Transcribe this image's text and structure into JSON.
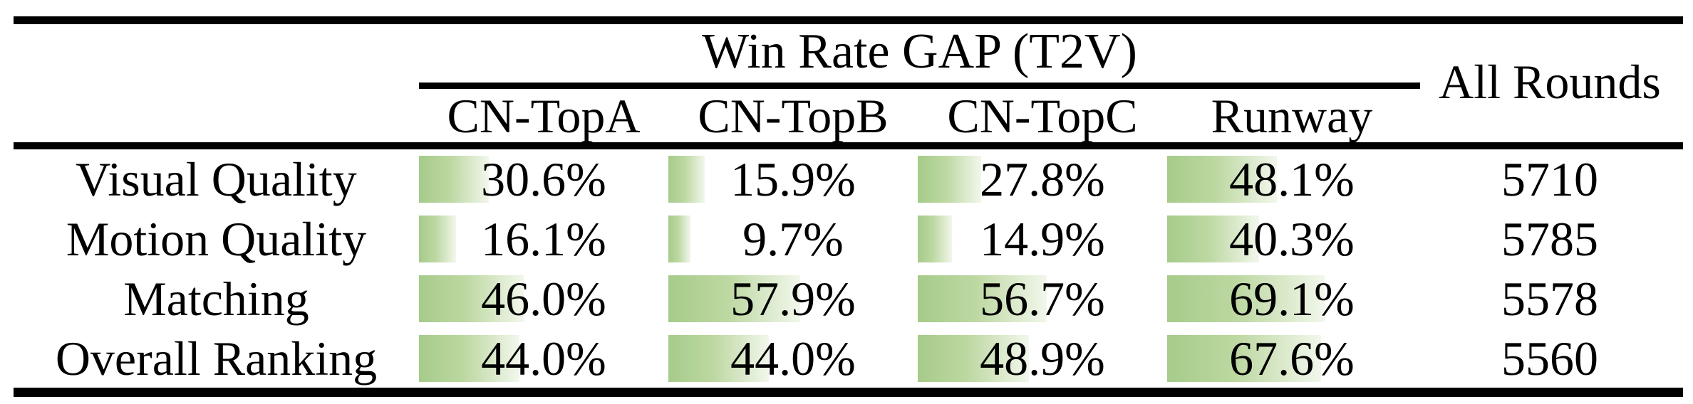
{
  "table": {
    "title": "Win Rate GAP (T2V)",
    "all_rounds_header": "All Rounds",
    "columns": [
      "CN-TopA",
      "CN-TopB",
      "CN-TopC",
      "Runway"
    ],
    "rows": [
      {
        "label": "Visual Quality",
        "values": [
          {
            "text": "30.6%",
            "pct": 30.6
          },
          {
            "text": "15.9%",
            "pct": 15.9
          },
          {
            "text": "27.8%",
            "pct": 27.8
          },
          {
            "text": "48.1%",
            "pct": 48.1
          }
        ],
        "all_rounds": "5710"
      },
      {
        "label": "Motion Quality",
        "values": [
          {
            "text": "16.1%",
            "pct": 16.1
          },
          {
            "text": "9.7%",
            "pct": 9.7
          },
          {
            "text": "14.9%",
            "pct": 14.9
          },
          {
            "text": "40.3%",
            "pct": 40.3
          }
        ],
        "all_rounds": "5785"
      },
      {
        "label": "Matching",
        "values": [
          {
            "text": "46.0%",
            "pct": 46.0
          },
          {
            "text": "57.9%",
            "pct": 57.9
          },
          {
            "text": "56.7%",
            "pct": 56.7
          },
          {
            "text": "69.1%",
            "pct": 69.1
          }
        ],
        "all_rounds": "5578"
      },
      {
        "label": "Overall Ranking",
        "values": [
          {
            "text": "44.0%",
            "pct": 44.0
          },
          {
            "text": "44.0%",
            "pct": 44.0
          },
          {
            "text": "48.9%",
            "pct": 48.9
          },
          {
            "text": "67.6%",
            "pct": 67.6
          }
        ],
        "all_rounds": "5560"
      }
    ],
    "bar_color_start": "#a6cb8a",
    "bar_color_end": "#f2f7ec"
  },
  "chart_data": {
    "type": "table",
    "title": "Win Rate GAP (T2V)",
    "column_headers": [
      "",
      "CN-TopA",
      "CN-TopB",
      "CN-TopC",
      "Runway",
      "All Rounds"
    ],
    "row_labels": [
      "Visual Quality",
      "Motion Quality",
      "Matching",
      "Overall Ranking"
    ],
    "series": [
      {
        "name": "CN-TopA",
        "values": [
          30.6,
          16.1,
          46.0,
          44.0
        ]
      },
      {
        "name": "CN-TopB",
        "values": [
          15.9,
          9.7,
          57.9,
          44.0
        ]
      },
      {
        "name": "CN-TopC",
        "values": [
          27.8,
          14.9,
          56.7,
          48.9
        ]
      },
      {
        "name": "Runway",
        "values": [
          48.1,
          40.3,
          69.1,
          67.6
        ]
      }
    ],
    "all_rounds": [
      5710,
      5785,
      5578,
      5560
    ],
    "unit": "percent",
    "bar_encoding": "horizontal green gradient data bars, length proportional to percent value (0-100% of cell width)"
  }
}
